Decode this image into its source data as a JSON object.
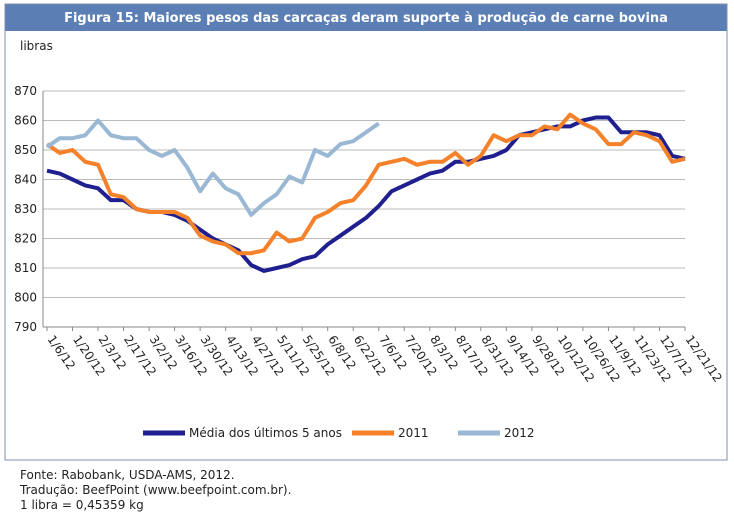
{
  "chart_data": {
    "type": "line",
    "title": "Figura 15: Maiores pesos das carcaças deram suporte à produção de carne bovina",
    "y_label": "libras",
    "categories": [
      "1/6/12",
      null,
      "1/20/12",
      null,
      "2/3/12",
      null,
      "2/17/12",
      null,
      "3/2/12",
      null,
      "3/16/12",
      null,
      "3/30/12",
      null,
      "4/13/12",
      null,
      "4/27/12",
      null,
      "5/11/12",
      null,
      "5/25/12",
      null,
      "6/8/12",
      null,
      "6/22/12",
      null,
      "7/6/12",
      null,
      "7/20/12",
      null,
      "8/3/12",
      null,
      "8/17/12",
      null,
      "8/31/12",
      null,
      "9/14/12",
      null,
      "9/28/12",
      null,
      "10/12/12",
      null,
      "10/26/12",
      null,
      "11/9/12",
      null,
      "11/23/12",
      null,
      "12/7/12",
      null,
      "12/21/12"
    ],
    "series": [
      {
        "name": "Média dos últimos 5 anos",
        "color": "#1f1f8f",
        "values": [
          843,
          842,
          840,
          838,
          837,
          833,
          833,
          830,
          829,
          829,
          828,
          826,
          823,
          820,
          818,
          816,
          811,
          809,
          810,
          811,
          813,
          814,
          818,
          821,
          824,
          827,
          831,
          836,
          838,
          840,
          842,
          843,
          846,
          846,
          847,
          848,
          850,
          855,
          856,
          857,
          858,
          858,
          860,
          861,
          861,
          856,
          856,
          856,
          855,
          848,
          847
        ]
      },
      {
        "name": "2011",
        "color": "#f5822a",
        "values": [
          852,
          849,
          850,
          846,
          845,
          835,
          834,
          830,
          829,
          829,
          829,
          827,
          821,
          819,
          818,
          815,
          815,
          816,
          822,
          819,
          820,
          827,
          829,
          832,
          833,
          838,
          845,
          846,
          847,
          845,
          846,
          846,
          849,
          845,
          848,
          855,
          853,
          855,
          855,
          858,
          857,
          862,
          859,
          857,
          852,
          852,
          856,
          855,
          853,
          846,
          847
        ]
      },
      {
        "name": "2012",
        "color": "#9ab7d3",
        "values": [
          851,
          854,
          854,
          855,
          860,
          855,
          854,
          854,
          850,
          848,
          850,
          844,
          836,
          842,
          837,
          835,
          828,
          832,
          835,
          841,
          839,
          850,
          848,
          852,
          853,
          856,
          859,
          null,
          null,
          null,
          null,
          null,
          null,
          null,
          null,
          null,
          null,
          null,
          null,
          null,
          null,
          null,
          null,
          null,
          null,
          null,
          null,
          null,
          null,
          null,
          null
        ]
      }
    ],
    "ylim": [
      790,
      870
    ],
    "yticks": [
      790,
      800,
      810,
      820,
      830,
      840,
      850,
      860,
      870
    ],
    "grid": true,
    "legend": "bottom",
    "footer": [
      "Fonte: Rabobank, USDA-AMS, 2012.",
      "Tradução: BeefPoint (www.beefpoint.com.br).",
      "1 libra = 0,45359 kg"
    ]
  }
}
